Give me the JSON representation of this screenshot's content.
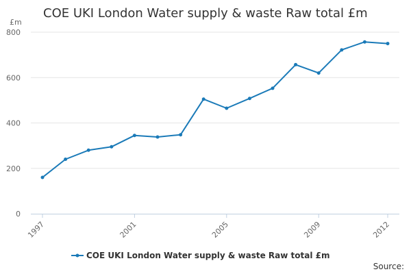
{
  "chart_data": {
    "type": "line",
    "title": "COE UKI London Water supply & waste Raw total £m",
    "ylabel": "£m",
    "xlabel": "",
    "ylim": [
      0,
      800
    ],
    "y_ticks": [
      0,
      200,
      400,
      600,
      800
    ],
    "x_ticks": [
      1997,
      2001,
      2005,
      2009,
      2012
    ],
    "x_range": [
      1997,
      2012
    ],
    "grid": true,
    "legend_position": "bottom",
    "series": [
      {
        "name": "COE UKI London Water supply & waste Raw total £m",
        "color": "#1a7ab8",
        "x": [
          1997,
          1998,
          1999,
          2000,
          2001,
          2002,
          2003,
          2004,
          2005,
          2006,
          2007,
          2008,
          2009,
          2010,
          2011,
          2012
        ],
        "values": [
          160,
          240,
          280,
          295,
          345,
          338,
          348,
          505,
          465,
          508,
          553,
          657,
          620,
          722,
          757,
          750
        ]
      }
    ],
    "source_label": "Source:"
  }
}
